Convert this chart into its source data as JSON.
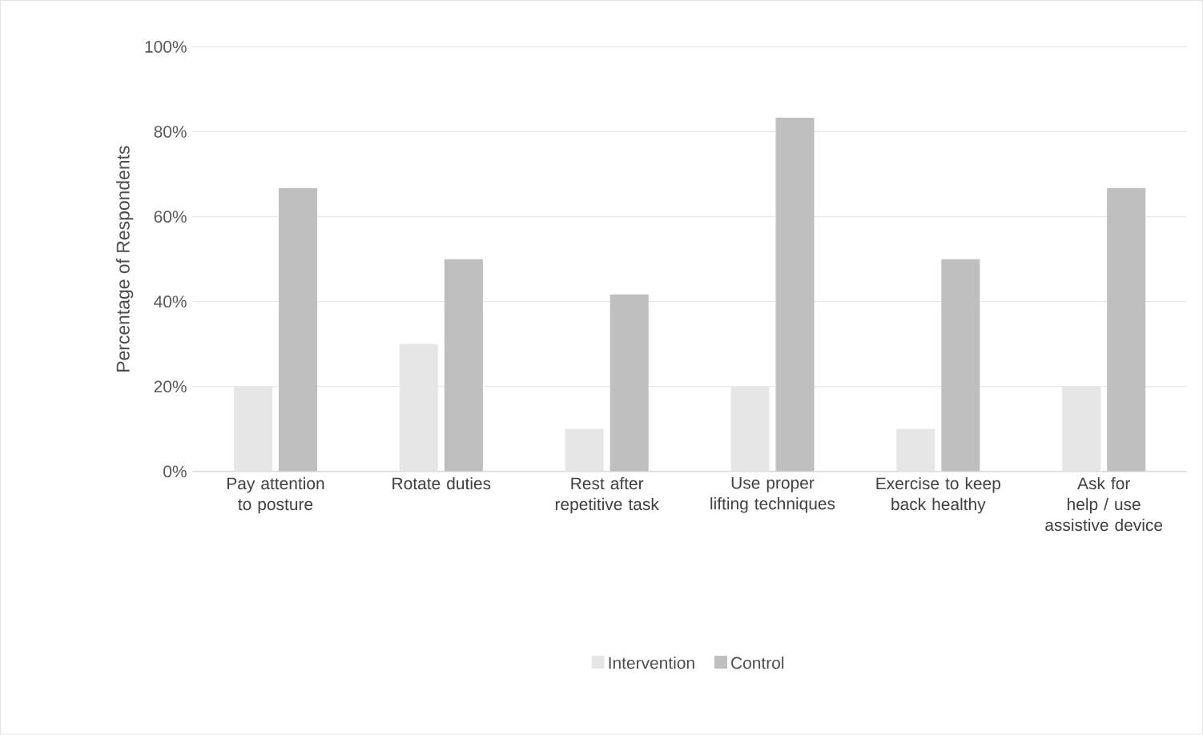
{
  "chart_data": {
    "type": "bar",
    "ylabel": "Percentage of Respondents",
    "categories": [
      "Pay attention to posture",
      "Rotate duties",
      "Rest after repetitive task",
      "Use proper lifting techniques",
      "Exercise to keep back healthy",
      "Ask for help / use assistive device"
    ],
    "series": [
      {
        "name": "Intervention",
        "color": "#e6e6e6",
        "values": [
          20,
          30,
          10,
          20,
          10,
          20
        ]
      },
      {
        "name": "Control",
        "color": "#bfbfbf",
        "values": [
          66.7,
          50,
          41.7,
          83.3,
          50,
          66.7
        ]
      }
    ],
    "ylim": [
      0,
      100
    ],
    "yticks": [
      {
        "value": 0,
        "label": "0%"
      },
      {
        "value": 20,
        "label": "20%"
      },
      {
        "value": 40,
        "label": "40%"
      },
      {
        "value": 60,
        "label": "60%"
      },
      {
        "value": 80,
        "label": "80%"
      },
      {
        "value": 100,
        "label": "100%"
      }
    ],
    "grid": "y",
    "legend": "bottom"
  }
}
